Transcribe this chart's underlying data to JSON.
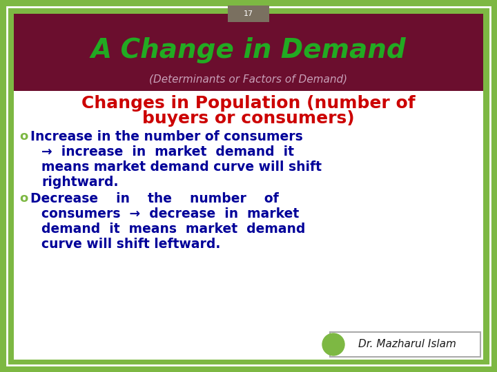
{
  "slide_number": "17",
  "title": "A Change in Demand",
  "subtitle": "(Determinants or Factors of Demand)",
  "watermark": "Dr. Mazharul Islam",
  "bg_color": "#7db843",
  "header_bg": "#6b0e2e",
  "title_color": "#22aa22",
  "subtitle_color": "#c8a0b8",
  "heading_color": "#cc0000",
  "bullet_color": "#000099",
  "marker_color": "#7db843",
  "content_bg": "#ffffff",
  "slide_num_bg": "#7a7060"
}
